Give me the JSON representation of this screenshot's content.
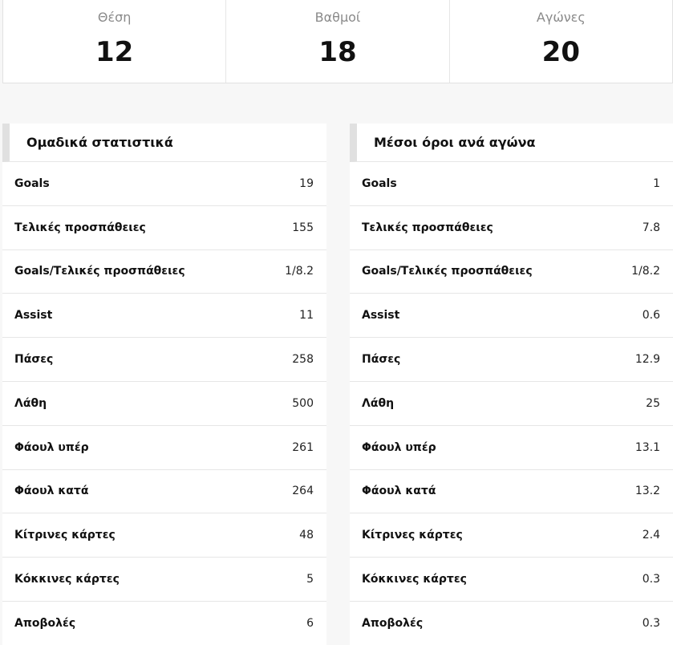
{
  "summary": [
    {
      "label": "Θέση",
      "value": "12"
    },
    {
      "label": "Βαθμοί",
      "value": "18"
    },
    {
      "label": "Αγώνες",
      "value": "20"
    }
  ],
  "team_stats": {
    "title": "Ομαδικά στατιστικά",
    "rows": [
      {
        "label": "Goals",
        "value": "19"
      },
      {
        "label": "Τελικές προσπάθειες",
        "value": "155"
      },
      {
        "label": "Goals/Τελικές προσπάθειες",
        "value": "1/8.2"
      },
      {
        "label": "Assist",
        "value": "11"
      },
      {
        "label": "Πάσες",
        "value": "258"
      },
      {
        "label": "Λάθη",
        "value": "500"
      },
      {
        "label": "Φάουλ υπέρ",
        "value": "261"
      },
      {
        "label": "Φάουλ κατά",
        "value": "264"
      },
      {
        "label": "Κίτρινες κάρτες",
        "value": "48"
      },
      {
        "label": "Κόκκινες κάρτες",
        "value": "5"
      },
      {
        "label": "Αποβολές",
        "value": "6"
      }
    ]
  },
  "averages": {
    "title": "Μέσοι όροι ανά αγώνα",
    "rows": [
      {
        "label": "Goals",
        "value": "1"
      },
      {
        "label": "Τελικές προσπάθειες",
        "value": "7.8"
      },
      {
        "label": "Goals/Τελικές προσπάθειες",
        "value": "1/8.2"
      },
      {
        "label": "Assist",
        "value": "0.6"
      },
      {
        "label": "Πάσες",
        "value": "12.9"
      },
      {
        "label": "Λάθη",
        "value": "25"
      },
      {
        "label": "Φάουλ υπέρ",
        "value": "13.1"
      },
      {
        "label": "Φάουλ κατά",
        "value": "13.2"
      },
      {
        "label": "Κίτρινες κάρτες",
        "value": "2.4"
      },
      {
        "label": "Κόκκινες κάρτες",
        "value": "0.3"
      },
      {
        "label": "Αποβολές",
        "value": "0.3"
      }
    ]
  }
}
